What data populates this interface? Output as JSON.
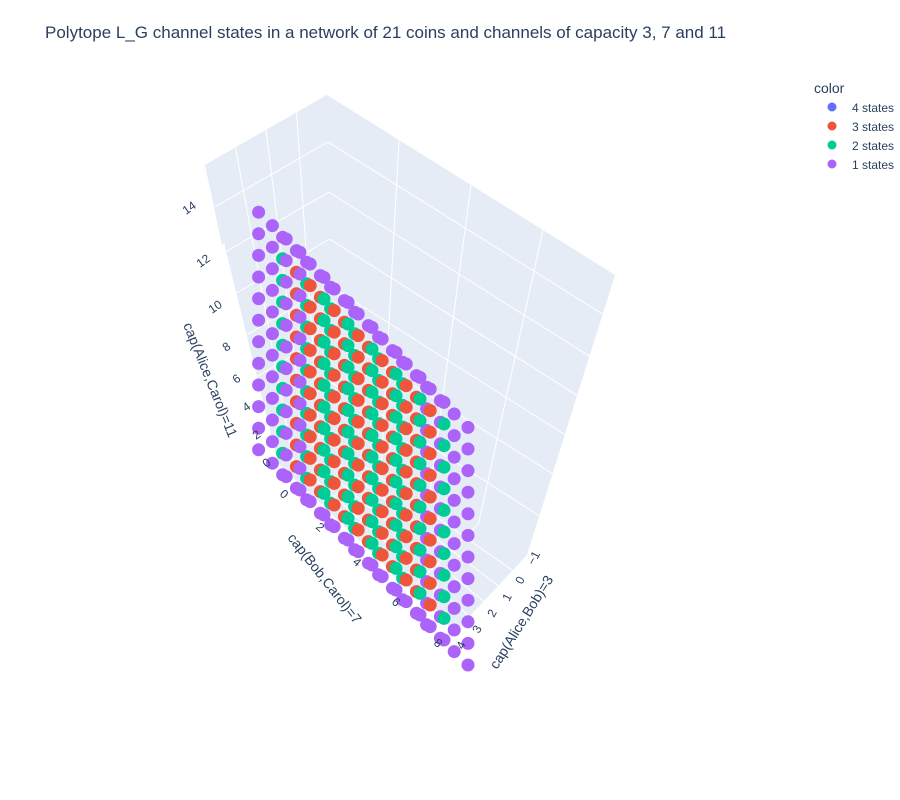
{
  "chart_data": {
    "type": "scatter3d",
    "title": "Polytope L_G channel states in a network of 21 coins and channels of capacity 3, 7 and 11",
    "axes": {
      "x": {
        "label": "cap(Alice,Bob)=3",
        "ticks": [
          "−1",
          "0",
          "1",
          "2",
          "3",
          "4"
        ],
        "range": [
          -1,
          4
        ]
      },
      "y": {
        "label": "cap(Bob,Carol)=7",
        "ticks": [
          "0",
          "2",
          "4",
          "6",
          "8"
        ],
        "range": [
          0,
          8
        ]
      },
      "z": {
        "label": "cap(Alice,Carol)=11",
        "ticks": [
          "0",
          "2",
          "4",
          "6",
          "8",
          "10",
          "12",
          "14"
        ],
        "range": [
          0,
          14
        ]
      }
    },
    "legend": {
      "title": "color",
      "position": "top-right",
      "entries": [
        {
          "name": "4 states",
          "color": "#636efa"
        },
        {
          "name": "3 states",
          "color": "#EF553B"
        },
        {
          "name": "2 states",
          "color": "#00cc96"
        },
        {
          "name": "1 states",
          "color": "#ab63fa"
        }
      ]
    },
    "grid": true,
    "background": "#e5ecf6"
  }
}
